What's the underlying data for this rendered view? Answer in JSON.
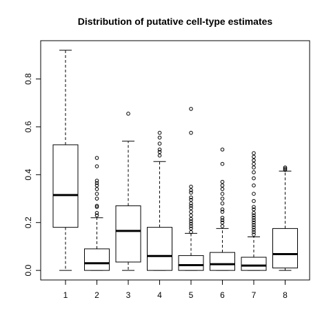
{
  "chart_data": {
    "type": "box",
    "title": "Distribution of putative cell-type estimates",
    "xlabel": "",
    "ylabel": "",
    "ylim": [
      -0.04,
      0.96
    ],
    "yticks": [
      0.0,
      0.2,
      0.4,
      0.6,
      0.8
    ],
    "ytick_labels": [
      "0.0",
      "0.2",
      "0.4",
      "0.6",
      "0.8"
    ],
    "categories": [
      "1",
      "2",
      "3",
      "4",
      "5",
      "6",
      "7",
      "8"
    ],
    "boxes": [
      {
        "whisker_low": 0.0,
        "q1": 0.18,
        "median": 0.315,
        "q3": 0.525,
        "whisker_high": 0.92,
        "outliers": []
      },
      {
        "whisker_low": 0.0,
        "q1": 0.0,
        "median": 0.03,
        "q3": 0.09,
        "whisker_high": 0.22,
        "outliers": [
          0.23,
          0.24,
          0.265,
          0.27,
          0.3,
          0.32,
          0.34,
          0.355,
          0.365,
          0.375,
          0.435,
          0.47
        ]
      },
      {
        "whisker_low": 0.0,
        "q1": 0.035,
        "median": 0.165,
        "q3": 0.27,
        "whisker_high": 0.54,
        "outliers": [
          0.655
        ]
      },
      {
        "whisker_low": 0.0,
        "q1": 0.0,
        "median": 0.06,
        "q3": 0.18,
        "whisker_high": 0.455,
        "outliers": [
          0.48,
          0.495,
          0.505,
          0.53,
          0.555,
          0.575
        ]
      },
      {
        "whisker_low": 0.0,
        "q1": 0.0,
        "median": 0.022,
        "q3": 0.062,
        "whisker_high": 0.155,
        "outliers": [
          0.16,
          0.175,
          0.185,
          0.195,
          0.205,
          0.215,
          0.23,
          0.245,
          0.26,
          0.27,
          0.28,
          0.295,
          0.305,
          0.325,
          0.335,
          0.35,
          0.575,
          0.675
        ]
      },
      {
        "whisker_low": 0.0,
        "q1": 0.0,
        "median": 0.026,
        "q3": 0.075,
        "whisker_high": 0.175,
        "outliers": [
          0.185,
          0.2,
          0.21,
          0.22,
          0.245,
          0.255,
          0.28,
          0.3,
          0.32,
          0.34,
          0.355,
          0.37,
          0.445,
          0.505
        ]
      },
      {
        "whisker_low": 0.0,
        "q1": 0.0,
        "median": 0.02,
        "q3": 0.055,
        "whisker_high": 0.14,
        "outliers": [
          0.15,
          0.16,
          0.17,
          0.18,
          0.19,
          0.2,
          0.21,
          0.22,
          0.23,
          0.24,
          0.255,
          0.265,
          0.29,
          0.32,
          0.355,
          0.385,
          0.41,
          0.43,
          0.445,
          0.46,
          0.475,
          0.49
        ]
      },
      {
        "whisker_low": 0.0,
        "q1": 0.01,
        "median": 0.068,
        "q3": 0.175,
        "whisker_high": 0.415,
        "outliers": [
          0.42,
          0.425,
          0.43
        ]
      }
    ],
    "grid": false,
    "legend": "none"
  }
}
